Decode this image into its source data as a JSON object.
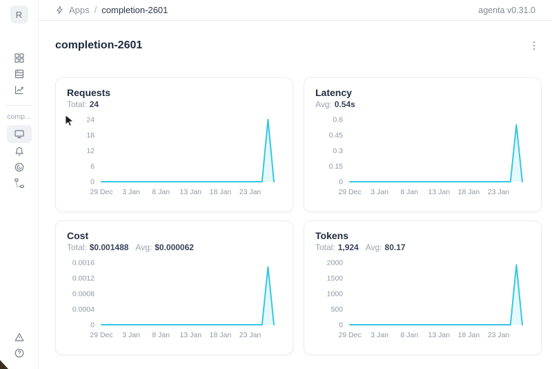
{
  "theme": {
    "accent": "#36c6e3",
    "area_fill_opacity": 0.13,
    "tick_color": "#8d97a5"
  },
  "avatar": {
    "letter": "R"
  },
  "topbar": {
    "breadcrumb": {
      "apps_label": "Apps",
      "separator": "/",
      "app_name": "completion-2601"
    },
    "version": "agenta v0.31.0"
  },
  "sidebar": {
    "app_label": "comp...",
    "icons_top": [
      "apps-grid-icon",
      "table-rows-icon",
      "line-chart-icon"
    ],
    "icons_app": [
      "monitor-icon",
      "bell-icon",
      "radar-icon",
      "trace-tree-icon"
    ],
    "icons_bottom": [
      "warning-triangle-icon",
      "help-circle-icon"
    ],
    "selected_icon": "monitor-icon"
  },
  "main": {
    "title": "completion-2601"
  },
  "cards": [
    {
      "id": "requests",
      "title": "Requests",
      "stats": [
        {
          "label": "Total:",
          "value": "24"
        }
      ],
      "chart_data": {
        "type": "area",
        "x": [
          "29 Dec",
          "30 Dec",
          "31 Dec",
          "1 Jan",
          "2 Jan",
          "3 Jan",
          "4 Jan",
          "5 Jan",
          "6 Jan",
          "7 Jan",
          "8 Jan",
          "9 Jan",
          "10 Jan",
          "11 Jan",
          "12 Jan",
          "13 Jan",
          "14 Jan",
          "15 Jan",
          "16 Jan",
          "17 Jan",
          "18 Jan",
          "19 Jan",
          "20 Jan",
          "21 Jan",
          "22 Jan",
          "23 Jan",
          "24 Jan",
          "25 Jan",
          "26 Jan",
          "27 Jan"
        ],
        "values": [
          0,
          0,
          0,
          0,
          0,
          0,
          0,
          0,
          0,
          0,
          0,
          0,
          0,
          0,
          0,
          0,
          0,
          0,
          0,
          0,
          0,
          0,
          0,
          0,
          0,
          0,
          0,
          0,
          24,
          0
        ],
        "yticks": [
          "0",
          "6",
          "12",
          "18",
          "24"
        ],
        "xtick_indices": [
          0,
          5,
          10,
          15,
          20,
          25
        ],
        "ylim": [
          0,
          24
        ],
        "grid": false,
        "legend": false
      }
    },
    {
      "id": "latency",
      "title": "Latency",
      "stats": [
        {
          "label": "Avg:",
          "value": "0.54s"
        }
      ],
      "chart_data": {
        "type": "area",
        "x": [
          "29 Dec",
          "30 Dec",
          "31 Dec",
          "1 Jan",
          "2 Jan",
          "3 Jan",
          "4 Jan",
          "5 Jan",
          "6 Jan",
          "7 Jan",
          "8 Jan",
          "9 Jan",
          "10 Jan",
          "11 Jan",
          "12 Jan",
          "13 Jan",
          "14 Jan",
          "15 Jan",
          "16 Jan",
          "17 Jan",
          "18 Jan",
          "19 Jan",
          "20 Jan",
          "21 Jan",
          "22 Jan",
          "23 Jan",
          "24 Jan",
          "25 Jan",
          "26 Jan",
          "27 Jan"
        ],
        "values": [
          0,
          0,
          0,
          0,
          0,
          0,
          0,
          0,
          0,
          0,
          0,
          0,
          0,
          0,
          0,
          0,
          0,
          0,
          0,
          0,
          0,
          0,
          0,
          0,
          0,
          0,
          0,
          0,
          0.55,
          0
        ],
        "yticks": [
          "0",
          "0.15",
          "0.3",
          "0.45",
          "0.6"
        ],
        "xtick_indices": [
          0,
          5,
          10,
          15,
          20,
          25
        ],
        "ylim": [
          0,
          0.6
        ],
        "grid": false,
        "legend": false
      }
    },
    {
      "id": "cost",
      "title": "Cost",
      "stats": [
        {
          "label": "Total:",
          "value": "$0.001488"
        },
        {
          "label": "Avg:",
          "value": "$0.000062"
        }
      ],
      "chart_data": {
        "type": "area",
        "x": [
          "29 Dec",
          "30 Dec",
          "31 Dec",
          "1 Jan",
          "2 Jan",
          "3 Jan",
          "4 Jan",
          "5 Jan",
          "6 Jan",
          "7 Jan",
          "8 Jan",
          "9 Jan",
          "10 Jan",
          "11 Jan",
          "12 Jan",
          "13 Jan",
          "14 Jan",
          "15 Jan",
          "16 Jan",
          "17 Jan",
          "18 Jan",
          "19 Jan",
          "20 Jan",
          "21 Jan",
          "22 Jan",
          "23 Jan",
          "24 Jan",
          "25 Jan",
          "26 Jan",
          "27 Jan"
        ],
        "values": [
          0,
          0,
          0,
          0,
          0,
          0,
          0,
          0,
          0,
          0,
          0,
          0,
          0,
          0,
          0,
          0,
          0,
          0,
          0,
          0,
          0,
          0,
          0,
          0,
          0,
          0,
          0,
          0,
          0.001488,
          0
        ],
        "yticks": [
          "0",
          "0.0004",
          "0.0008",
          "0.0012",
          "0.0016"
        ],
        "xtick_indices": [
          0,
          5,
          10,
          15,
          20,
          25
        ],
        "ylim": [
          0,
          0.0016
        ],
        "grid": false,
        "legend": false
      }
    },
    {
      "id": "tokens",
      "title": "Tokens",
      "stats": [
        {
          "label": "Total:",
          "value": "1,924"
        },
        {
          "label": "Avg:",
          "value": "80.17"
        }
      ],
      "chart_data": {
        "type": "area",
        "x": [
          "29 Dec",
          "30 Dec",
          "31 Dec",
          "1 Jan",
          "2 Jan",
          "3 Jan",
          "4 Jan",
          "5 Jan",
          "6 Jan",
          "7 Jan",
          "8 Jan",
          "9 Jan",
          "10 Jan",
          "11 Jan",
          "12 Jan",
          "13 Jan",
          "14 Jan",
          "15 Jan",
          "16 Jan",
          "17 Jan",
          "18 Jan",
          "19 Jan",
          "20 Jan",
          "21 Jan",
          "22 Jan",
          "23 Jan",
          "24 Jan",
          "25 Jan",
          "26 Jan",
          "27 Jan"
        ],
        "values": [
          0,
          0,
          0,
          0,
          0,
          0,
          0,
          0,
          0,
          0,
          0,
          0,
          0,
          0,
          0,
          0,
          0,
          0,
          0,
          0,
          0,
          0,
          0,
          0,
          0,
          0,
          0,
          0,
          1924,
          0
        ],
        "yticks": [
          "0",
          "500",
          "1000",
          "1500",
          "2000"
        ],
        "xtick_indices": [
          0,
          5,
          10,
          15,
          20,
          25
        ],
        "ylim": [
          0,
          2000
        ],
        "grid": false,
        "legend": false
      }
    }
  ]
}
